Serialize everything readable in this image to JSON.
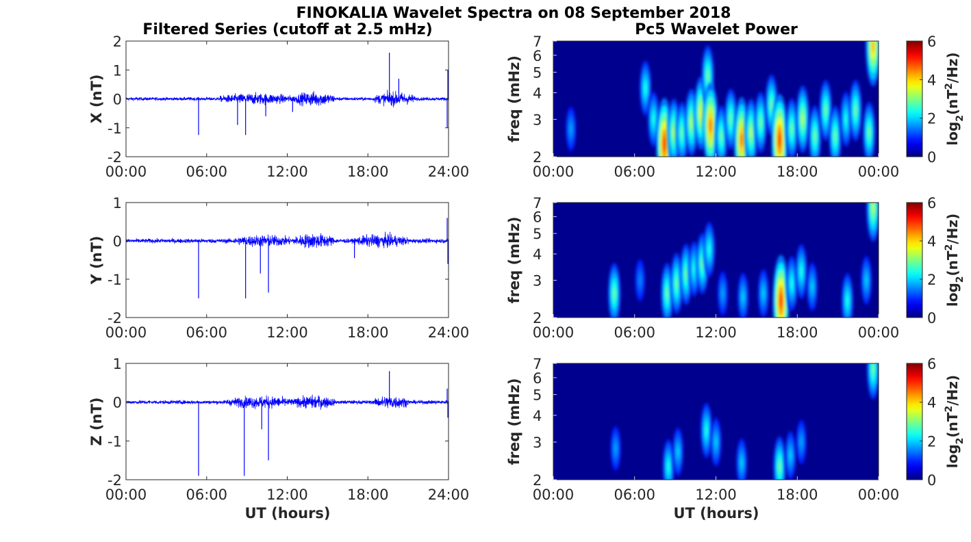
{
  "title": "FINOKALIA Wavelet Spectra on 08 September 2018",
  "left_title": "Filtered Series (cutoff at 2.5 mHz)",
  "right_title": "Pc5 Wavelet Power",
  "xlabel": "UT (hours)",
  "series_ticks": [
    "00:00",
    "06:00",
    "12:00",
    "18:00",
    "24:00"
  ],
  "spectra_ticks": [
    "00:00",
    "06:00",
    "12:00",
    "18:00",
    "00:00"
  ],
  "freq_ylabel": "freq (mHz)",
  "freq_ticks": [
    "2",
    "3",
    "4",
    "5",
    "6",
    "7"
  ],
  "colorbar": {
    "label_base": "log",
    "label_sub": "2",
    "label_mid": "(nT",
    "label_sup": "2",
    "label_tail": "/Hz)",
    "ticks": [
      "0",
      "2",
      "4",
      "6"
    ],
    "range": [
      0,
      6
    ]
  },
  "colors": {
    "series_line": "#0000ff",
    "spectrum_bg": "#00008f"
  },
  "chart_data": [
    {
      "type": "line",
      "component": "X",
      "ylabel": "X (nT)",
      "ylim": [
        -2,
        2
      ],
      "yticks": [
        "2",
        "1",
        "0",
        "-1",
        "-2"
      ],
      "xlim_hours": [
        0,
        24
      ],
      "baseline_noise_nT": 0.07,
      "activity_segments": [
        {
          "from": 7.0,
          "to": 12.5,
          "amp": 0.25
        },
        {
          "from": 12.5,
          "to": 15.5,
          "amp": 0.32
        },
        {
          "from": 18.5,
          "to": 21.5,
          "amp": 0.3
        }
      ],
      "spikes": [
        {
          "t": 5.4,
          "v": -1.25
        },
        {
          "t": 8.3,
          "v": -0.9
        },
        {
          "t": 8.9,
          "v": -1.25
        },
        {
          "t": 10.4,
          "v": -0.6
        },
        {
          "t": 12.4,
          "v": -0.45
        },
        {
          "t": 19.6,
          "v": 1.6
        },
        {
          "t": 20.3,
          "v": 0.7
        },
        {
          "t": 23.9,
          "v": -1.0
        },
        {
          "t": 23.95,
          "v": 1.0
        }
      ]
    },
    {
      "type": "line",
      "component": "Y",
      "ylabel": "Y (nT)",
      "ylim": [
        -2,
        1
      ],
      "yticks": [
        "1",
        "0",
        "-1",
        "-2"
      ],
      "xlim_hours": [
        0,
        24
      ],
      "baseline_noise_nT": 0.07,
      "activity_segments": [
        {
          "from": 8.0,
          "to": 12.5,
          "amp": 0.2
        },
        {
          "from": 12.5,
          "to": 15.5,
          "amp": 0.25
        },
        {
          "from": 17.0,
          "to": 21.0,
          "amp": 0.22
        }
      ],
      "spikes": [
        {
          "t": 5.4,
          "v": -1.5
        },
        {
          "t": 8.9,
          "v": -1.5
        },
        {
          "t": 10.0,
          "v": -0.85
        },
        {
          "t": 10.6,
          "v": -1.35
        },
        {
          "t": 17.0,
          "v": -0.45
        },
        {
          "t": 23.9,
          "v": 0.6
        },
        {
          "t": 23.95,
          "v": -0.6
        }
      ]
    },
    {
      "type": "line",
      "component": "Z",
      "ylabel": "Z (nT)",
      "ylim": [
        -2,
        1
      ],
      "yticks": [
        "1",
        "0",
        "-1",
        "-2"
      ],
      "xlim_hours": [
        0,
        24
      ],
      "baseline_noise_nT": 0.06,
      "activity_segments": [
        {
          "from": 7.5,
          "to": 12.5,
          "amp": 0.2
        },
        {
          "from": 12.5,
          "to": 15.5,
          "amp": 0.22
        },
        {
          "from": 18.5,
          "to": 21.0,
          "amp": 0.22
        }
      ],
      "spikes": [
        {
          "t": 5.4,
          "v": -1.9
        },
        {
          "t": 8.8,
          "v": -1.9
        },
        {
          "t": 10.1,
          "v": -0.7
        },
        {
          "t": 10.6,
          "v": -1.5
        },
        {
          "t": 19.6,
          "v": 0.8
        },
        {
          "t": 23.9,
          "v": 0.35
        },
        {
          "t": 23.95,
          "v": -0.4
        }
      ]
    },
    {
      "type": "heatmap",
      "component": "X",
      "ylabel": "freq (mHz)",
      "ylim_mHz": [
        2,
        7
      ],
      "xlim_hours": [
        0,
        24
      ],
      "zlim": [
        0,
        6
      ],
      "blobs": [
        {
          "t": 1.3,
          "f": 2.7,
          "p": 1.2
        },
        {
          "t": 6.8,
          "f": 4.2,
          "p": 2.0
        },
        {
          "t": 7.4,
          "f": 3.0,
          "p": 2.0
        },
        {
          "t": 8.2,
          "f": 2.3,
          "p": 5.0
        },
        {
          "t": 8.9,
          "f": 2.6,
          "p": 3.0
        },
        {
          "t": 9.5,
          "f": 2.6,
          "p": 2.5
        },
        {
          "t": 10.2,
          "f": 2.9,
          "p": 3.0
        },
        {
          "t": 10.9,
          "f": 3.2,
          "p": 3.5
        },
        {
          "t": 11.4,
          "f": 4.8,
          "p": 2.5
        },
        {
          "t": 11.6,
          "f": 2.8,
          "p": 4.5
        },
        {
          "t": 12.4,
          "f": 2.5,
          "p": 2.5
        },
        {
          "t": 13.1,
          "f": 3.0,
          "p": 2.5
        },
        {
          "t": 13.9,
          "f": 2.4,
          "p": 4.5
        },
        {
          "t": 14.6,
          "f": 2.6,
          "p": 3.0
        },
        {
          "t": 15.3,
          "f": 2.9,
          "p": 2.5
        },
        {
          "t": 16.1,
          "f": 3.5,
          "p": 2.5
        },
        {
          "t": 16.7,
          "f": 2.4,
          "p": 5.0
        },
        {
          "t": 17.6,
          "f": 2.7,
          "p": 2.5
        },
        {
          "t": 18.4,
          "f": 3.0,
          "p": 3.0
        },
        {
          "t": 19.3,
          "f": 2.5,
          "p": 2.5
        },
        {
          "t": 20.1,
          "f": 3.3,
          "p": 2.5
        },
        {
          "t": 20.8,
          "f": 2.5,
          "p": 2.5
        },
        {
          "t": 21.6,
          "f": 3.0,
          "p": 2.0
        },
        {
          "t": 22.3,
          "f": 3.3,
          "p": 2.5
        },
        {
          "t": 23.3,
          "f": 2.6,
          "p": 2.5
        },
        {
          "t": 23.6,
          "f": 6.6,
          "p": 4.0
        }
      ]
    },
    {
      "type": "heatmap",
      "component": "Y",
      "ylabel": "freq (mHz)",
      "ylim_mHz": [
        2,
        7
      ],
      "xlim_hours": [
        0,
        24
      ],
      "zlim": [
        0,
        6
      ],
      "blobs": [
        {
          "t": 4.5,
          "f": 2.6,
          "p": 2.5
        },
        {
          "t": 6.4,
          "f": 3.0,
          "p": 1.0
        },
        {
          "t": 8.4,
          "f": 2.6,
          "p": 2.5
        },
        {
          "t": 9.1,
          "f": 2.9,
          "p": 2.5
        },
        {
          "t": 9.8,
          "f": 3.2,
          "p": 2.5
        },
        {
          "t": 10.4,
          "f": 3.4,
          "p": 2.0
        },
        {
          "t": 11.0,
          "f": 3.6,
          "p": 2.5
        },
        {
          "t": 11.5,
          "f": 4.2,
          "p": 2.0
        },
        {
          "t": 12.5,
          "f": 2.6,
          "p": 1.2
        },
        {
          "t": 14.0,
          "f": 2.5,
          "p": 1.5
        },
        {
          "t": 15.5,
          "f": 2.6,
          "p": 1.5
        },
        {
          "t": 16.8,
          "f": 2.4,
          "p": 5.0
        },
        {
          "t": 17.6,
          "f": 2.9,
          "p": 2.0
        },
        {
          "t": 18.3,
          "f": 3.3,
          "p": 2.0
        },
        {
          "t": 19.1,
          "f": 2.8,
          "p": 1.5
        },
        {
          "t": 21.7,
          "f": 2.4,
          "p": 2.0
        },
        {
          "t": 23.1,
          "f": 3.0,
          "p": 1.5
        },
        {
          "t": 23.6,
          "f": 6.6,
          "p": 3.0
        }
      ]
    },
    {
      "type": "heatmap",
      "component": "Z",
      "ylabel": "freq (mHz)",
      "ylim_mHz": [
        2,
        7
      ],
      "xlim_hours": [
        0,
        24
      ],
      "zlim": [
        0,
        6
      ],
      "blobs": [
        {
          "t": 4.6,
          "f": 2.8,
          "p": 1.2
        },
        {
          "t": 8.5,
          "f": 2.3,
          "p": 2.0
        },
        {
          "t": 9.2,
          "f": 2.7,
          "p": 1.5
        },
        {
          "t": 11.3,
          "f": 3.4,
          "p": 2.0
        },
        {
          "t": 12.0,
          "f": 3.0,
          "p": 1.5
        },
        {
          "t": 13.9,
          "f": 2.4,
          "p": 1.5
        },
        {
          "t": 16.7,
          "f": 2.3,
          "p": 2.5
        },
        {
          "t": 17.5,
          "f": 2.6,
          "p": 1.5
        },
        {
          "t": 18.3,
          "f": 3.0,
          "p": 1.2
        },
        {
          "t": 23.6,
          "f": 6.6,
          "p": 2.5
        }
      ]
    }
  ]
}
